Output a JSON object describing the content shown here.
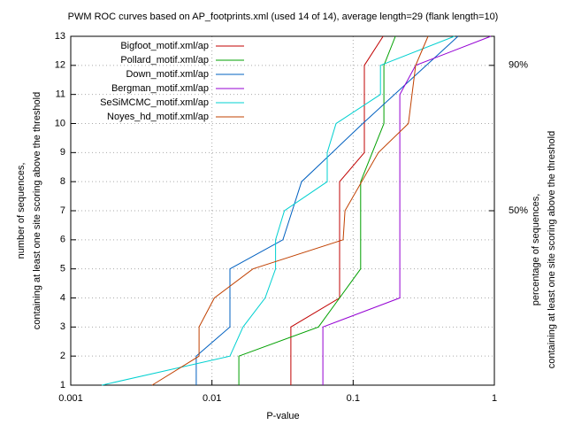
{
  "chart_data": {
    "type": "line",
    "title": "PWM ROC curves based on AP_footprints.xml (used 14 of 14), average length=29 (flank length=10)",
    "xlabel": "P-value",
    "ylabel": [
      "number of sequences,",
      "containing at least one site scoring above the threshold"
    ],
    "y2label": [
      "percentage of sequences,",
      "containing at least one site scoring above the threshold"
    ],
    "xscale": "log",
    "xlim": [
      0.001,
      1
    ],
    "xticks": [
      0.001,
      0.01,
      0.1,
      1
    ],
    "ylim": [
      1,
      13
    ],
    "yticks": [
      1,
      2,
      3,
      4,
      5,
      6,
      7,
      8,
      9,
      10,
      11,
      12,
      13
    ],
    "y2lim": [
      2,
      98
    ],
    "y2ticks": [
      {
        "value": 50,
        "label": "50%"
      },
      {
        "value": 90,
        "label": "90%"
      }
    ],
    "grid": true,
    "legend": "top-left",
    "series": [
      {
        "name": "Bigfoot_motif.xml/ap",
        "color": "#c00000",
        "x": [
          0.0362,
          0.0362,
          0.0802,
          0.0802,
          0.12,
          0.12,
          0.163
        ],
        "values": [
          1,
          3,
          4,
          8,
          9,
          12,
          13
        ]
      },
      {
        "name": "Pollard_motif.xml/ap",
        "color": "#00a000",
        "x": [
          0.0155,
          0.0155,
          0.0568,
          0.113,
          0.113,
          0.165,
          0.165,
          0.199
        ],
        "values": [
          1,
          2,
          3,
          5,
          8,
          10,
          12,
          13
        ]
      },
      {
        "name": "Down_motif.xml/ap",
        "color": "#0060c0",
        "x": [
          0.00774,
          0.00774,
          0.0134,
          0.0134,
          0.0318,
          0.0431,
          0.117,
          0.553
        ],
        "values": [
          1,
          2,
          3,
          5,
          6,
          8,
          10,
          13
        ]
      },
      {
        "name": "Bergman_motif.xml/ap",
        "color": "#9400d3",
        "x": [
          0.061,
          0.061,
          0.214,
          0.214,
          0.277,
          0.944
        ],
        "values": [
          1,
          3,
          4,
          11,
          12,
          13
        ]
      },
      {
        "name": "SeSiMCMC_motif.xml/ap",
        "color": "#00d0d0",
        "x": [
          0.00166,
          0.0134,
          0.0166,
          0.0238,
          0.0282,
          0.0282,
          0.0326,
          0.0655,
          0.0655,
          0.0757,
          0.156,
          0.156,
          0.522
        ],
        "values": [
          1,
          2,
          3,
          4,
          5,
          6,
          7,
          8,
          9,
          10,
          11,
          12,
          13
        ]
      },
      {
        "name": "Noyes_hd_motif.xml/ap",
        "color": "#c04000",
        "x": [
          0.00377,
          0.0081,
          0.0081,
          0.0104,
          0.0195,
          0.0849,
          0.0875,
          0.151,
          0.246,
          0.277,
          0.339
        ],
        "values": [
          1,
          2,
          3,
          4,
          5,
          6,
          7,
          9,
          10,
          12,
          13
        ]
      }
    ]
  }
}
